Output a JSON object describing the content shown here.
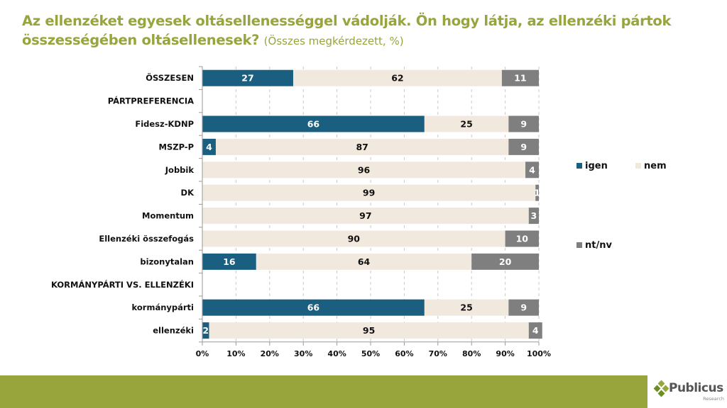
{
  "title": {
    "main": "Az ellenzéket egyesek oltásellenességgel vádolják. Ön hogy látja, az ellenzéki pártok összességében oltásellenesek?",
    "subtitle": "(Összes megkérdezett, %)"
  },
  "colors": {
    "igen": "#1a5e80",
    "nem": "#f1e8de",
    "ntnv": "#7f7f7f",
    "title": "#98a43c",
    "footer": "#98a43c"
  },
  "chart_data": {
    "type": "bar",
    "orientation": "horizontal",
    "stacked": "100%",
    "title": "Az ellenzéket egyesek oltásellenességgel vádolják. Ön hogy látja, az ellenzéki pártok összességében oltásellenesek? (Összes megkérdezett, %)",
    "categories": [
      "ÖSSZESEN",
      "PÁRTPREFERENCIA",
      "Fidesz-KDNP",
      "MSZP-P",
      "Jobbik",
      "DK",
      "Momentum",
      "Ellenzéki összefogás",
      "bizonytalan",
      "KORMÁNYPÁRTI VS. ELLENZÉKI",
      "kormánypárti",
      "ellenzéki"
    ],
    "series": [
      {
        "name": "igen",
        "values": [
          27,
          null,
          66,
          4,
          0,
          0,
          0,
          0,
          16,
          null,
          66,
          2
        ]
      },
      {
        "name": "nem",
        "values": [
          62,
          null,
          25,
          87,
          96,
          99,
          97,
          90,
          64,
          null,
          25,
          95
        ]
      },
      {
        "name": "nt/nv",
        "values": [
          11,
          null,
          9,
          9,
          4,
          1,
          3,
          10,
          20,
          null,
          9,
          4
        ]
      }
    ],
    "xlabel": "",
    "ylabel": "",
    "xlim": [
      0,
      100
    ],
    "xticks": [
      "0%",
      "10%",
      "20%",
      "30%",
      "40%",
      "50%",
      "60%",
      "70%",
      "80%",
      "90%",
      "100%"
    ],
    "grid": "vertical dashed",
    "legend": {
      "entries": [
        "igen",
        "nem",
        "nt/nv"
      ],
      "position": "right"
    }
  },
  "footer": {
    "logo_name": "Publicus",
    "logo_sub": "Research"
  }
}
